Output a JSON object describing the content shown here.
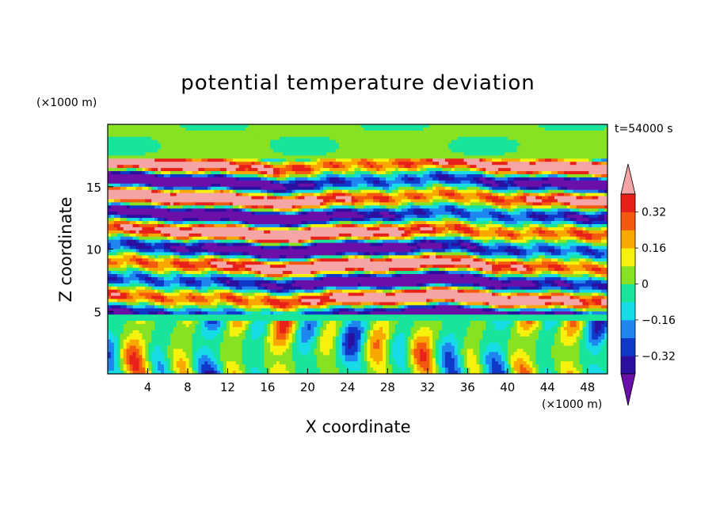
{
  "chart_data": {
    "type": "heatmap",
    "title": "potential temperature deviation",
    "xlabel": "X coordinate",
    "ylabel": "Z coordinate",
    "x_unit": "(×1000 m)",
    "y_unit": "(×1000 m)",
    "time_label": "t=54000 s",
    "xlim": [
      0,
      50
    ],
    "ylim": [
      0,
      20
    ],
    "x_ticks": [
      4,
      8,
      12,
      16,
      20,
      24,
      28,
      32,
      36,
      40,
      44,
      48
    ],
    "y_ticks": [
      5,
      10,
      15
    ],
    "colorbar": {
      "labels": [
        "0.32",
        "0.16",
        "0",
        "-0.16",
        "-0.32"
      ],
      "label_values": [
        0.32,
        0.16,
        0,
        -0.16,
        -0.32
      ],
      "levels": [
        -0.4,
        -0.32,
        -0.24,
        -0.16,
        -0.08,
        0,
        0.08,
        0.16,
        0.24,
        0.32,
        0.4
      ],
      "colors": [
        "#6a10a8",
        "#2a0fa0",
        "#1038c8",
        "#1f86f0",
        "#17dce8",
        "#18e49a",
        "#88e224",
        "#f6f20e",
        "#f9a800",
        "#f45a0f",
        "#e8201a",
        "#f5a5a5"
      ],
      "extend": "both"
    },
    "regions": [
      {
        "z_range": [
          0,
          5
        ],
        "description": "lower layer with vertical plumes"
      },
      {
        "z_range": [
          5,
          17
        ],
        "description": "layered horizontal bands of alternating sign"
      },
      {
        "z_range": [
          17,
          20
        ],
        "description": "upper layer near zero"
      }
    ]
  }
}
